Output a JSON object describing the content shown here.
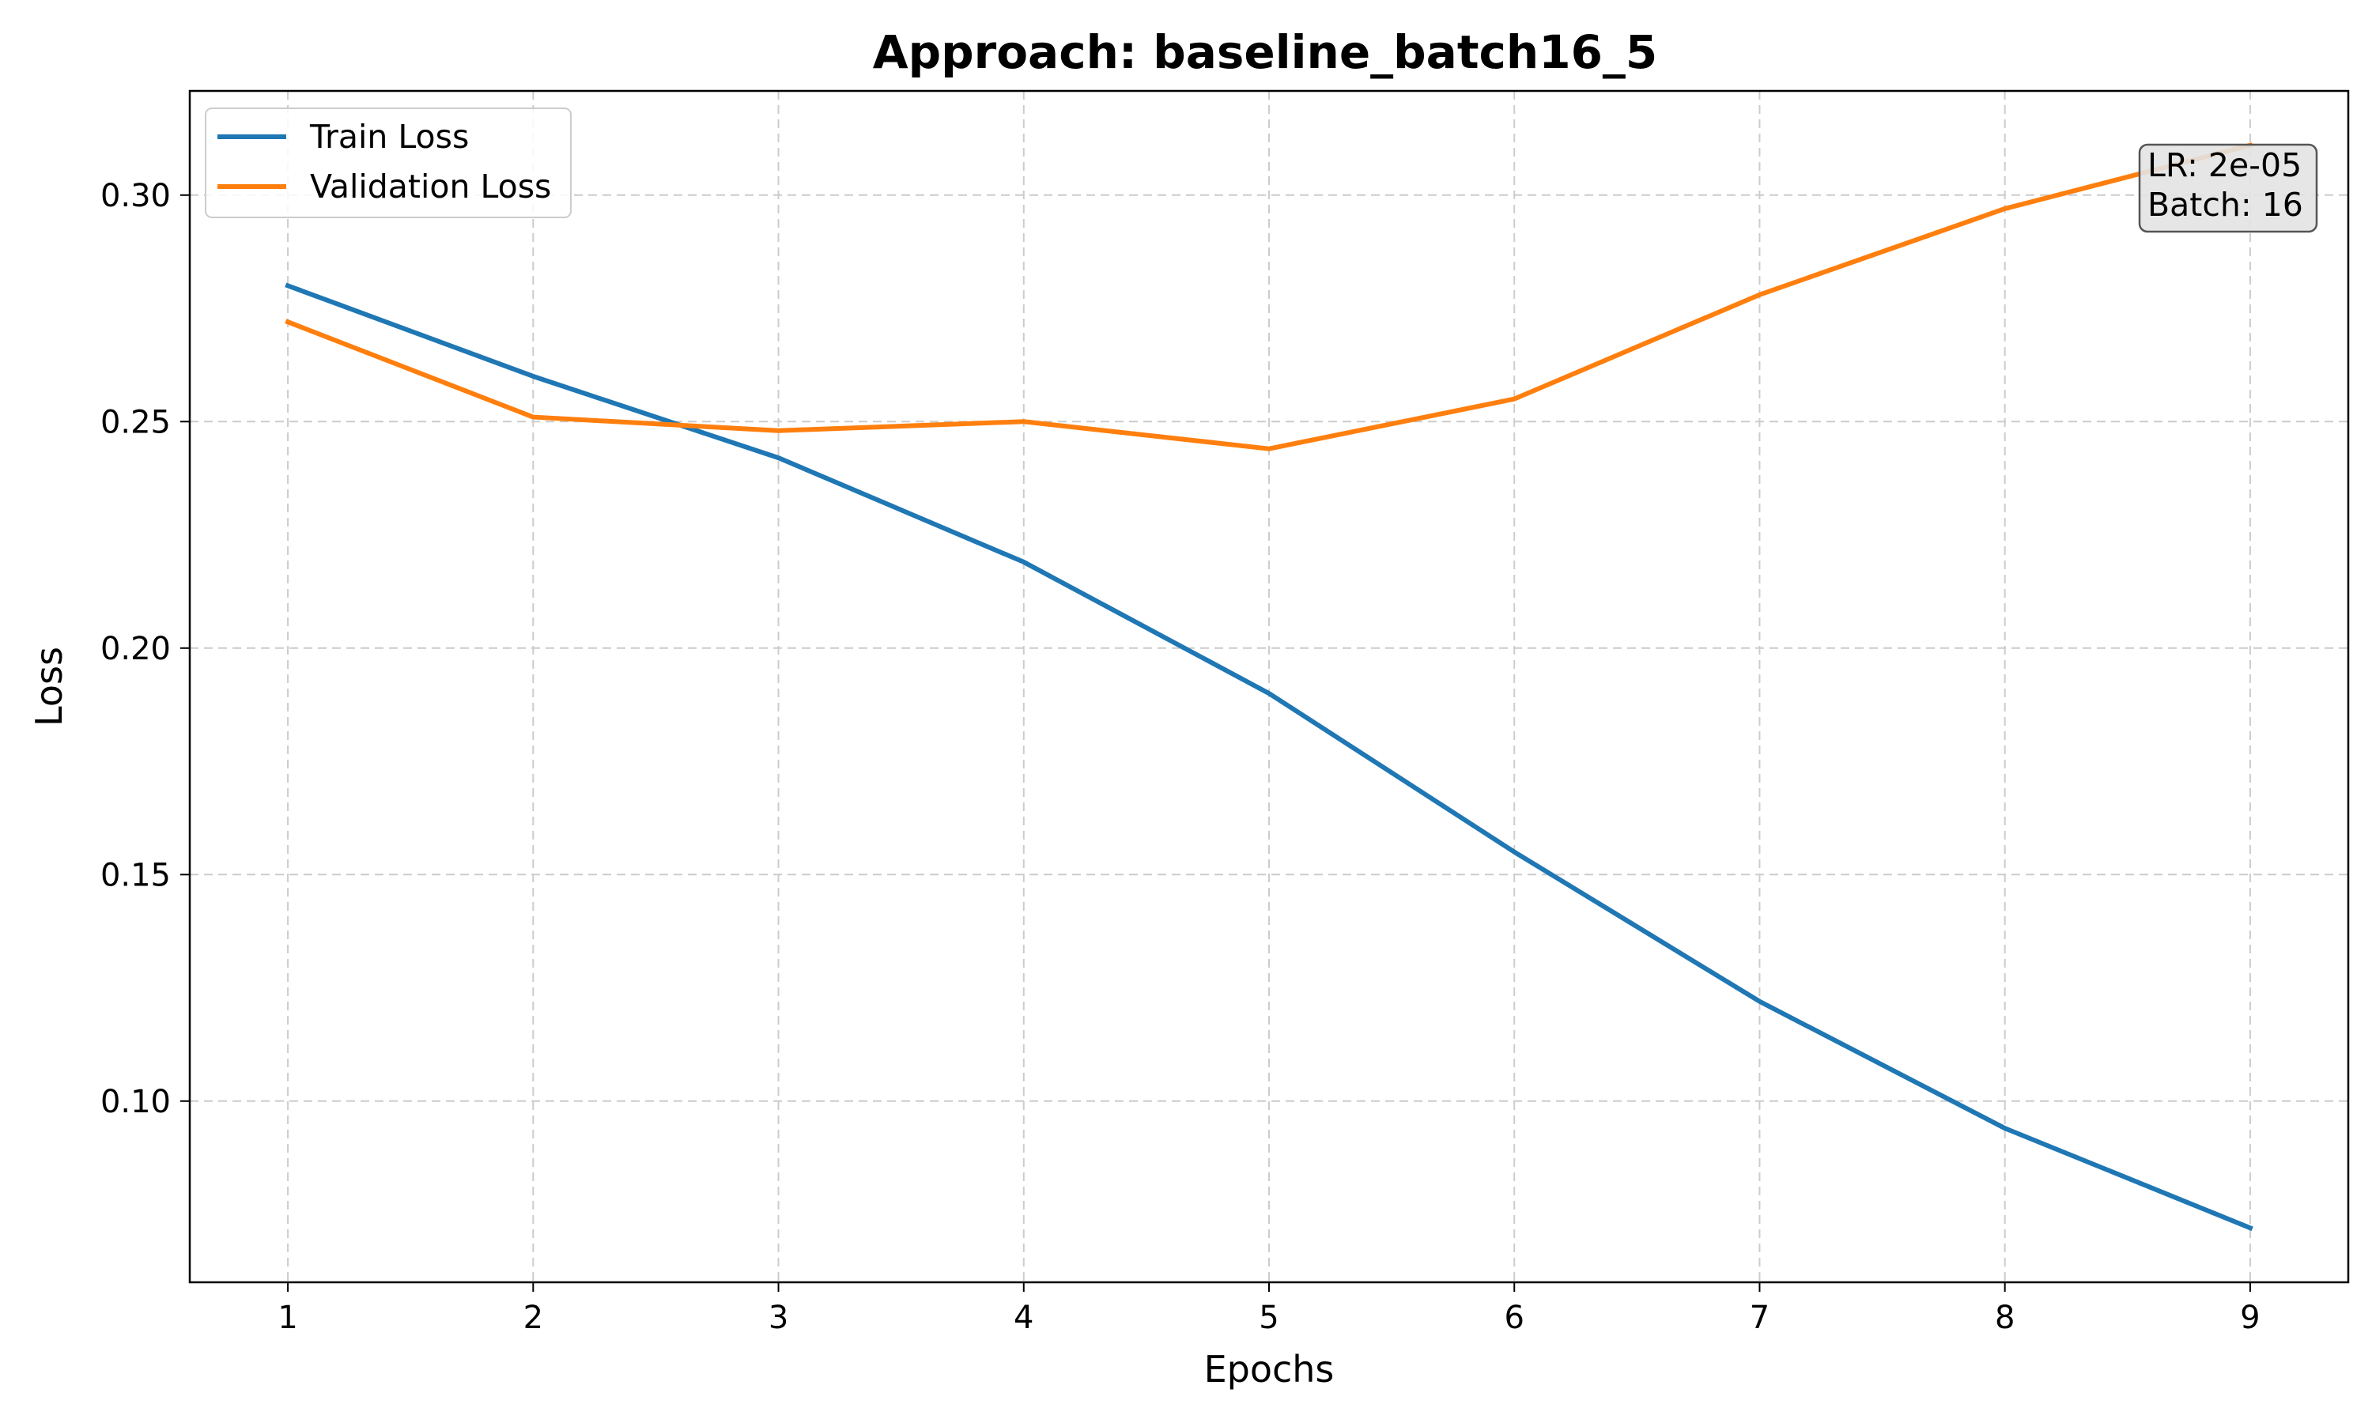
{
  "chart_data": {
    "type": "line",
    "title": "Approach: baseline_batch16_5",
    "xlabel": "Epochs",
    "ylabel": "Loss",
    "x": [
      1,
      2,
      3,
      4,
      5,
      6,
      7,
      8,
      9
    ],
    "xticks": [
      "1",
      "2",
      "3",
      "4",
      "5",
      "6",
      "7",
      "8",
      "9"
    ],
    "yticks": [
      "0.10",
      "0.15",
      "0.20",
      "0.25",
      "0.30"
    ],
    "ylim": [
      0.06,
      0.323
    ],
    "xlim": [
      0.6,
      9.4
    ],
    "grid": true,
    "legend_position": "top-left",
    "series": [
      {
        "name": "Train Loss",
        "color": "#1f77b4",
        "values": [
          0.28,
          0.26,
          0.242,
          0.219,
          0.19,
          0.155,
          0.122,
          0.094,
          0.072
        ]
      },
      {
        "name": "Validation Loss",
        "color": "#ff7f0e",
        "values": [
          0.272,
          0.251,
          0.248,
          0.25,
          0.244,
          0.255,
          0.278,
          0.297,
          0.311
        ]
      }
    ],
    "annotation": {
      "lines": [
        "LR: 2e-05",
        "Batch: 16"
      ]
    }
  }
}
